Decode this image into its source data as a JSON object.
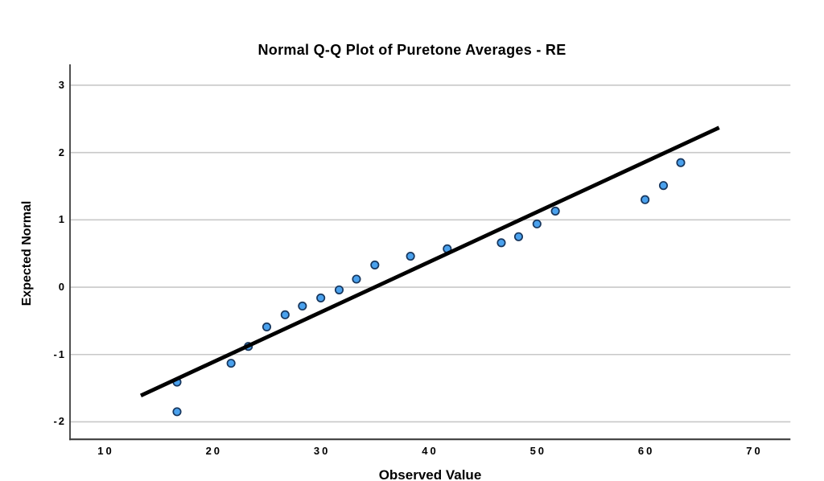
{
  "chart_data": {
    "type": "scatter",
    "variant": "normal-qq-plot",
    "title": "Normal Q-Q Plot of Puretone Averages - RE",
    "xlabel": "Observed Value",
    "ylabel": "Expected Normal",
    "x_ticks": [
      10,
      20,
      30,
      40,
      50,
      60,
      70
    ],
    "y_ticks": [
      3,
      2,
      1,
      0,
      -1,
      -2
    ],
    "xlim": [
      6.8,
      73.45
    ],
    "ylim": [
      -2.26,
      3.31
    ],
    "grid": "horizontal-only",
    "legend": "none",
    "points": [
      [
        16.7,
        -1.85
      ],
      [
        16.7,
        -1.41
      ],
      [
        21.7,
        -1.13
      ],
      [
        23.3,
        -0.88
      ],
      [
        25.0,
        -0.59
      ],
      [
        26.7,
        -0.41
      ],
      [
        28.3,
        -0.28
      ],
      [
        30.0,
        -0.16
      ],
      [
        31.7,
        -0.04
      ],
      [
        33.3,
        0.12
      ],
      [
        35.0,
        0.33
      ],
      [
        38.3,
        0.46
      ],
      [
        41.7,
        0.57
      ],
      [
        46.7,
        0.66
      ],
      [
        48.3,
        0.75
      ],
      [
        50.0,
        0.94
      ],
      [
        51.7,
        1.13
      ],
      [
        60.0,
        1.3
      ],
      [
        61.7,
        1.51
      ],
      [
        63.3,
        1.85
      ]
    ],
    "reference_line": {
      "x1": 13.35,
      "y1": -1.61,
      "x2": 66.85,
      "y2": 2.37
    },
    "colors": {
      "point_fill": "#4AA1ED",
      "point_stroke": "#17365D",
      "reference_line": "#000000",
      "grid": "#C8C8C8",
      "axis": "#3D3D3D",
      "text": "#000000"
    }
  }
}
